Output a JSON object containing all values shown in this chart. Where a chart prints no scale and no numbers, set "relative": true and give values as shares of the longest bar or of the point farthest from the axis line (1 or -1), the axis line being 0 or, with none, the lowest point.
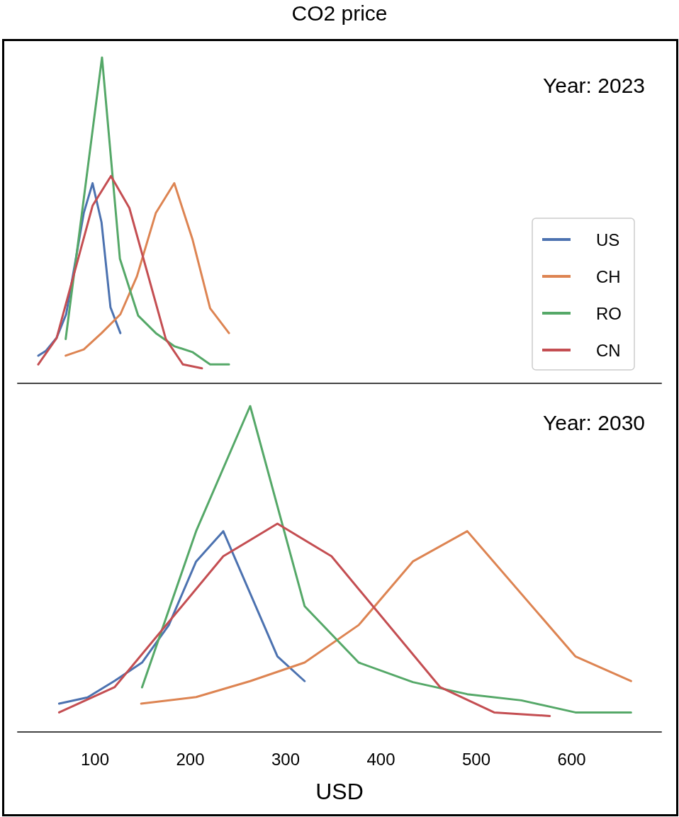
{
  "chart_data": [
    {
      "type": "line",
      "title": "CO2 price",
      "relative": true,
      "xlim": [
        19,
        694
      ],
      "xticks": [
        100,
        200,
        300,
        400,
        500,
        600
      ],
      "tick_labels": false,
      "grid": false,
      "legend": "right",
      "marker": "none",
      "line_style": "solid",
      "annotations": [
        "Year: 2023"
      ],
      "series": [
        {
          "name": "US",
          "color": "#4c72b0",
          "x": [
            40.5,
            48.7,
            59.8,
            69.8,
            88.3,
            97.5,
            106.9,
            116.3,
            126.7
          ],
          "values": [
            0.085,
            0.1,
            0.14,
            0.212,
            0.523,
            0.614,
            0.494,
            0.233,
            0.154
          ]
        },
        {
          "name": "CH",
          "color": "#dd8452",
          "x": [
            69.3,
            88.3,
            106.9,
            126.7,
            144.0,
            163.9,
            183.2,
            202.2,
            220.8,
            240.6
          ],
          "values": [
            0.085,
            0.104,
            0.154,
            0.212,
            0.328,
            0.523,
            0.614,
            0.443,
            0.23,
            0.154
          ]
        },
        {
          "name": "RO",
          "color": "#55a868",
          "x": [
            69.3,
            107.4,
            126.2,
            145.3,
            163.9,
            183.2,
            202.2,
            220.8,
            240.6
          ],
          "values": [
            0.136,
            1,
            0.382,
            0.208,
            0.154,
            0.114,
            0.096,
            0.058,
            0.058
          ]
        },
        {
          "name": "CN",
          "color": "#c44e52",
          "x": [
            40.5,
            59.8,
            97.5,
            116.8,
            136.1,
            174.3,
            192.3,
            212.2
          ],
          "values": [
            0.058,
            0.139,
            0.545,
            0.636,
            0.538,
            0.136,
            0.058,
            0.046
          ]
        }
      ]
    },
    {
      "type": "line",
      "xlabel": "USD",
      "relative": true,
      "xlim": [
        19,
        694
      ],
      "xticks": [
        100,
        200,
        300,
        400,
        500,
        600
      ],
      "tick_labels": "x",
      "grid": false,
      "marker": "none",
      "line_style": "solid",
      "annotations": [
        "Year: 2030"
      ],
      "series": [
        {
          "color": "#4c72b0",
          "x": [
            62.4,
            92.2,
            120.8,
            149.4,
            177.5,
            206.1,
            234.6,
            291.4,
            319.9
          ],
          "values": [
            0.087,
            0.106,
            0.157,
            0.213,
            0.328,
            0.523,
            0.616,
            0.232,
            0.156
          ]
        },
        {
          "color": "#dd8452",
          "x": [
            148.5,
            206.1,
            262.8,
            319.9,
            376.6,
            433.4,
            490.5,
            603.9,
            662.3
          ],
          "values": [
            0.087,
            0.107,
            0.156,
            0.213,
            0.328,
            0.523,
            0.616,
            0.232,
            0.156
          ]
        },
        {
          "color": "#55a868",
          "x": [
            149.4,
            206.1,
            262.8,
            319.9,
            376.6,
            433.4,
            490.5,
            547.2,
            603.9,
            662.3
          ],
          "values": [
            0.137,
            0.616,
            1,
            0.386,
            0.213,
            0.153,
            0.116,
            0.097,
            0.06,
            0.06
          ]
        },
        {
          "color": "#c44e52",
          "x": [
            62.4,
            120.8,
            234.6,
            291.4,
            348.1,
            461.9,
            518.7,
            577.1
          ],
          "values": [
            0.06,
            0.138,
            0.539,
            0.639,
            0.539,
            0.138,
            0.06,
            0.049
          ]
        }
      ]
    }
  ]
}
